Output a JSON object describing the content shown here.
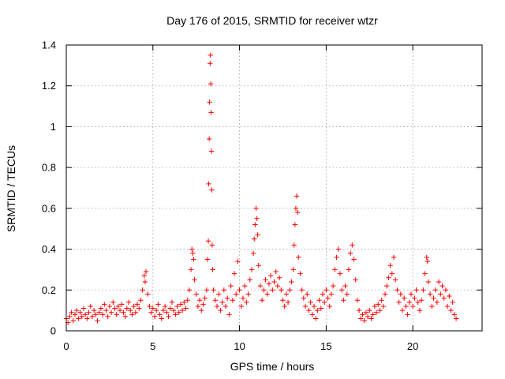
{
  "chart_data": {
    "type": "scatter",
    "title": "Day 176 of 2015, SRMTID for receiver wtzr",
    "xlabel": "GPS time / hours",
    "ylabel": "SRMTID / TECUs",
    "xlim": [
      0,
      24
    ],
    "ylim": [
      0,
      1.4
    ],
    "x_ticks": [
      0,
      5,
      10,
      15,
      20
    ],
    "x_tick_labels": [
      "0",
      "5",
      "10",
      "15",
      "20"
    ],
    "y_ticks": [
      0,
      0.2,
      0.4,
      0.6,
      0.8,
      1,
      1.2,
      1.4
    ],
    "y_tick_labels": [
      "0",
      "0.2",
      "0.4",
      "0.6",
      "0.8",
      "1",
      "1.2",
      "1.4"
    ],
    "grid": true,
    "marker": "plus",
    "marker_color": "#ff0000",
    "series": [
      {
        "name": "SRMTID",
        "points": [
          [
            0.0,
            0.06
          ],
          [
            0.1,
            0.04
          ],
          [
            0.2,
            0.07
          ],
          [
            0.3,
            0.09
          ],
          [
            0.4,
            0.05
          ],
          [
            0.5,
            0.08
          ],
          [
            0.6,
            0.1
          ],
          [
            0.7,
            0.06
          ],
          [
            0.8,
            0.09
          ],
          [
            0.9,
            0.07
          ],
          [
            1.0,
            0.11
          ],
          [
            1.1,
            0.08
          ],
          [
            1.2,
            0.06
          ],
          [
            1.3,
            0.09
          ],
          [
            1.4,
            0.12
          ],
          [
            1.5,
            0.07
          ],
          [
            1.6,
            0.1
          ],
          [
            1.7,
            0.08
          ],
          [
            1.8,
            0.05
          ],
          [
            1.9,
            0.09
          ],
          [
            2.0,
            0.11
          ],
          [
            2.1,
            0.08
          ],
          [
            2.2,
            0.13
          ],
          [
            2.3,
            0.1
          ],
          [
            2.4,
            0.07
          ],
          [
            2.5,
            0.12
          ],
          [
            2.6,
            0.09
          ],
          [
            2.7,
            0.14
          ],
          [
            2.8,
            0.11
          ],
          [
            2.9,
            0.08
          ],
          [
            3.0,
            0.12
          ],
          [
            3.1,
            0.1
          ],
          [
            3.2,
            0.13
          ],
          [
            3.3,
            0.09
          ],
          [
            3.4,
            0.07
          ],
          [
            3.5,
            0.11
          ],
          [
            3.6,
            0.14
          ],
          [
            3.7,
            0.1
          ],
          [
            3.8,
            0.08
          ],
          [
            3.9,
            0.12
          ],
          [
            4.0,
            0.09
          ],
          [
            4.1,
            0.13
          ],
          [
            4.2,
            0.11
          ],
          [
            4.3,
            0.15
          ],
          [
            4.4,
            0.2
          ],
          [
            4.5,
            0.27
          ],
          [
            4.55,
            0.24
          ],
          [
            4.6,
            0.29
          ],
          [
            4.7,
            0.18
          ],
          [
            4.8,
            0.12
          ],
          [
            4.9,
            0.09
          ],
          [
            5.0,
            0.11
          ],
          [
            5.1,
            0.07
          ],
          [
            5.2,
            0.1
          ],
          [
            5.3,
            0.13
          ],
          [
            5.4,
            0.08
          ],
          [
            5.5,
            0.06
          ],
          [
            5.6,
            0.1
          ],
          [
            5.7,
            0.12
          ],
          [
            5.8,
            0.09
          ],
          [
            5.9,
            0.07
          ],
          [
            6.0,
            0.11
          ],
          [
            6.1,
            0.14
          ],
          [
            6.2,
            0.1
          ],
          [
            6.3,
            0.08
          ],
          [
            6.4,
            0.12
          ],
          [
            6.5,
            0.09
          ],
          [
            6.6,
            0.13
          ],
          [
            6.7,
            0.1
          ],
          [
            6.8,
            0.14
          ],
          [
            6.9,
            0.11
          ],
          [
            7.0,
            0.15
          ],
          [
            7.1,
            0.2
          ],
          [
            7.2,
            0.3
          ],
          [
            7.25,
            0.4
          ],
          [
            7.3,
            0.38
          ],
          [
            7.35,
            0.35
          ],
          [
            7.4,
            0.25
          ],
          [
            7.5,
            0.18
          ],
          [
            7.6,
            0.12
          ],
          [
            7.7,
            0.15
          ],
          [
            7.8,
            0.1
          ],
          [
            7.9,
            0.13
          ],
          [
            8.0,
            0.16
          ],
          [
            8.1,
            0.2
          ],
          [
            8.15,
            0.35
          ],
          [
            8.2,
            0.44
          ],
          [
            8.22,
            0.72
          ],
          [
            8.25,
            0.94
          ],
          [
            8.27,
            1.12
          ],
          [
            8.3,
            1.31
          ],
          [
            8.32,
            1.35
          ],
          [
            8.34,
            1.21
          ],
          [
            8.36,
            1.07
          ],
          [
            8.38,
            0.88
          ],
          [
            8.4,
            0.69
          ],
          [
            8.42,
            0.42
          ],
          [
            8.45,
            0.3
          ],
          [
            8.5,
            0.2
          ],
          [
            8.6,
            0.15
          ],
          [
            8.7,
            0.12
          ],
          [
            8.8,
            0.18
          ],
          [
            8.9,
            0.1
          ],
          [
            9.0,
            0.14
          ],
          [
            9.1,
            0.2
          ],
          [
            9.2,
            0.12
          ],
          [
            9.3,
            0.16
          ],
          [
            9.4,
            0.08
          ],
          [
            9.5,
            0.22
          ],
          [
            9.6,
            0.15
          ],
          [
            9.7,
            0.28
          ],
          [
            9.8,
            0.18
          ],
          [
            9.9,
            0.34
          ],
          [
            10.0,
            0.2
          ],
          [
            10.1,
            0.12
          ],
          [
            10.2,
            0.16
          ],
          [
            10.3,
            0.22
          ],
          [
            10.4,
            0.14
          ],
          [
            10.5,
            0.18
          ],
          [
            10.6,
            0.25
          ],
          [
            10.7,
            0.3
          ],
          [
            10.8,
            0.38
          ],
          [
            10.85,
            0.45
          ],
          [
            10.9,
            0.52
          ],
          [
            10.95,
            0.6
          ],
          [
            11.0,
            0.55
          ],
          [
            11.05,
            0.47
          ],
          [
            11.1,
            0.32
          ],
          [
            11.2,
            0.22
          ],
          [
            11.3,
            0.15
          ],
          [
            11.4,
            0.2
          ],
          [
            11.5,
            0.25
          ],
          [
            11.6,
            0.18
          ],
          [
            11.7,
            0.23
          ],
          [
            11.8,
            0.27
          ],
          [
            11.9,
            0.2
          ],
          [
            12.0,
            0.24
          ],
          [
            12.1,
            0.29
          ],
          [
            12.2,
            0.22
          ],
          [
            12.3,
            0.26
          ],
          [
            12.4,
            0.2
          ],
          [
            12.5,
            0.15
          ],
          [
            12.6,
            0.12
          ],
          [
            12.7,
            0.18
          ],
          [
            12.8,
            0.14
          ],
          [
            12.9,
            0.2
          ],
          [
            13.0,
            0.24
          ],
          [
            13.1,
            0.3
          ],
          [
            13.15,
            0.42
          ],
          [
            13.2,
            0.52
          ],
          [
            13.25,
            0.6
          ],
          [
            13.3,
            0.66
          ],
          [
            13.35,
            0.58
          ],
          [
            13.4,
            0.36
          ],
          [
            13.5,
            0.28
          ],
          [
            13.6,
            0.2
          ],
          [
            13.7,
            0.16
          ],
          [
            13.8,
            0.12
          ],
          [
            13.9,
            0.18
          ],
          [
            14.0,
            0.1
          ],
          [
            14.1,
            0.14
          ],
          [
            14.2,
            0.08
          ],
          [
            14.3,
            0.12
          ],
          [
            14.4,
            0.06
          ],
          [
            14.5,
            0.1
          ],
          [
            14.6,
            0.15
          ],
          [
            14.7,
            0.11
          ],
          [
            14.8,
            0.18
          ],
          [
            14.9,
            0.14
          ],
          [
            15.0,
            0.2
          ],
          [
            15.1,
            0.16
          ],
          [
            15.2,
            0.12
          ],
          [
            15.3,
            0.18
          ],
          [
            15.4,
            0.22
          ],
          [
            15.5,
            0.3
          ],
          [
            15.6,
            0.36
          ],
          [
            15.7,
            0.4
          ],
          [
            15.8,
            0.28
          ],
          [
            15.9,
            0.2
          ],
          [
            16.0,
            0.15
          ],
          [
            16.1,
            0.22
          ],
          [
            16.2,
            0.18
          ],
          [
            16.3,
            0.3
          ],
          [
            16.4,
            0.38
          ],
          [
            16.5,
            0.42
          ],
          [
            16.6,
            0.35
          ],
          [
            16.7,
            0.25
          ],
          [
            16.8,
            0.15
          ],
          [
            16.9,
            0.1
          ],
          [
            17.0,
            0.06
          ],
          [
            17.1,
            0.08
          ],
          [
            17.2,
            0.05
          ],
          [
            17.3,
            0.09
          ],
          [
            17.4,
            0.07
          ],
          [
            17.5,
            0.1
          ],
          [
            17.6,
            0.06
          ],
          [
            17.7,
            0.08
          ],
          [
            17.8,
            0.12
          ],
          [
            17.9,
            0.09
          ],
          [
            18.0,
            0.13
          ],
          [
            18.1,
            0.1
          ],
          [
            18.2,
            0.15
          ],
          [
            18.3,
            0.12
          ],
          [
            18.4,
            0.18
          ],
          [
            18.5,
            0.22
          ],
          [
            18.6,
            0.26
          ],
          [
            18.7,
            0.32
          ],
          [
            18.8,
            0.28
          ],
          [
            18.9,
            0.36
          ],
          [
            19.0,
            0.25
          ],
          [
            19.1,
            0.2
          ],
          [
            19.2,
            0.14
          ],
          [
            19.3,
            0.18
          ],
          [
            19.4,
            0.1
          ],
          [
            19.5,
            0.16
          ],
          [
            19.6,
            0.12
          ],
          [
            19.7,
            0.08
          ],
          [
            19.8,
            0.14
          ],
          [
            19.9,
            0.18
          ],
          [
            20.0,
            0.12
          ],
          [
            20.1,
            0.16
          ],
          [
            20.2,
            0.2
          ],
          [
            20.3,
            0.14
          ],
          [
            20.4,
            0.1
          ],
          [
            20.5,
            0.15
          ],
          [
            20.6,
            0.2
          ],
          [
            20.7,
            0.28
          ],
          [
            20.8,
            0.36
          ],
          [
            20.85,
            0.34
          ],
          [
            20.9,
            0.24
          ],
          [
            21.0,
            0.18
          ],
          [
            21.1,
            0.12
          ],
          [
            21.2,
            0.16
          ],
          [
            21.3,
            0.2
          ],
          [
            21.4,
            0.14
          ],
          [
            21.5,
            0.24
          ],
          [
            21.6,
            0.18
          ],
          [
            21.7,
            0.22
          ],
          [
            21.8,
            0.16
          ],
          [
            21.9,
            0.2
          ],
          [
            22.0,
            0.12
          ],
          [
            22.1,
            0.17
          ],
          [
            22.2,
            0.1
          ],
          [
            22.3,
            0.14
          ],
          [
            22.4,
            0.08
          ],
          [
            22.5,
            0.06
          ]
        ]
      }
    ]
  }
}
